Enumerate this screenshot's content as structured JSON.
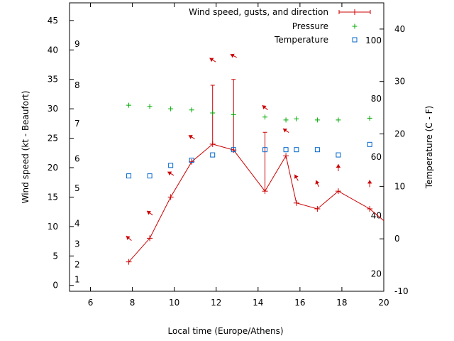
{
  "chart_data": {
    "type": "line",
    "xlabel": "Local time (Europe/Athens)",
    "ylabel": "Wind speed (kt - Beaufort)",
    "y2label": "Temperature (C - F)",
    "xlim": [
      5,
      20
    ],
    "ylim": [
      -1,
      48
    ],
    "y2lim": [
      -10,
      45
    ],
    "x_ticks": [
      6,
      8,
      10,
      12,
      14,
      16,
      18,
      20
    ],
    "y_ticks": [
      0,
      5,
      10,
      15,
      20,
      25,
      30,
      35,
      40,
      45
    ],
    "y2_ticks": [
      -10,
      0,
      10,
      20,
      30,
      40
    ],
    "beaufort_labels": [
      {
        "label": "1",
        "kt": 1
      },
      {
        "label": "2",
        "kt": 3.5
      },
      {
        "label": "3",
        "kt": 7
      },
      {
        "label": "4",
        "kt": 10.5
      },
      {
        "label": "5",
        "kt": 16.5
      },
      {
        "label": "6",
        "kt": 21.5
      },
      {
        "label": "7",
        "kt": 27.5
      },
      {
        "label": "8",
        "kt": 34
      },
      {
        "label": "9",
        "kt": 41
      }
    ],
    "fahrenheit_labels": [
      {
        "label": "20",
        "celsius": -6.7
      },
      {
        "label": "40",
        "celsius": 4.4
      },
      {
        "label": "60",
        "celsius": 15.6
      },
      {
        "label": "80",
        "celsius": 26.7
      },
      {
        "label": "100",
        "celsius": 37.8
      }
    ],
    "legend": {
      "placement": "top-right",
      "entries": [
        {
          "label": "Wind speed, gusts, and direction"
        },
        {
          "label": "Pressure"
        },
        {
          "label": "Temperature"
        }
      ]
    },
    "series": [
      {
        "name": "Wind speed, gusts, and direction",
        "color": "#cc0000",
        "x": [
          7.83,
          8.83,
          9.83,
          10.83,
          11.83,
          12.83,
          14.33,
          15.33,
          15.83,
          16.83,
          17.83,
          19.33,
          20.0
        ],
        "values": [
          4,
          8,
          15,
          21,
          24,
          23,
          16,
          22,
          14,
          13,
          16,
          13,
          11
        ],
        "gusts": [
          null,
          null,
          null,
          null,
          34,
          35,
          26,
          null,
          null,
          null,
          null,
          null,
          null
        ],
        "arrows": [
          {
            "x": 7.83,
            "kt": 8,
            "dx": 7,
            "dy": 6
          },
          {
            "x": 8.83,
            "kt": 12.3,
            "dx": 7,
            "dy": 5
          },
          {
            "x": 9.83,
            "kt": 19,
            "dx": 7,
            "dy": 4
          },
          {
            "x": 10.83,
            "kt": 25.2,
            "dx": 7,
            "dy": 4
          },
          {
            "x": 11.83,
            "kt": 38.3,
            "dx": 8,
            "dy": 5
          },
          {
            "x": 12.83,
            "kt": 39,
            "dx": 8,
            "dy": 4
          },
          {
            "x": 14.33,
            "kt": 30.2,
            "dx": 6,
            "dy": 5
          },
          {
            "x": 15.33,
            "kt": 26.3,
            "dx": 6,
            "dy": 4
          },
          {
            "x": 15.83,
            "kt": 18.3,
            "dx": 4,
            "dy": 7
          },
          {
            "x": 16.83,
            "kt": 17.3,
            "dx": 3,
            "dy": 7
          },
          {
            "x": 17.83,
            "kt": 20,
            "dx": 0,
            "dy": 9
          },
          {
            "x": 19.33,
            "kt": 17.3,
            "dx": 0,
            "dy": 9
          }
        ]
      },
      {
        "name": "Pressure",
        "color": "#00aa00",
        "x": [
          7.83,
          8.83,
          9.83,
          10.83,
          11.83,
          12.83,
          14.33,
          15.33,
          15.83,
          16.83,
          17.83,
          19.33
        ],
        "values": [
          30.6,
          30.4,
          30.0,
          29.8,
          29.3,
          29.0,
          28.6,
          28.1,
          28.3,
          28.1,
          28.1,
          28.4
        ]
      },
      {
        "name": "Temperature",
        "color": "#0066cc",
        "x": [
          7.83,
          8.83,
          9.83,
          10.83,
          11.83,
          12.83,
          14.33,
          15.33,
          15.83,
          16.83,
          17.83,
          19.33
        ],
        "values": [
          12,
          12,
          14,
          15,
          16,
          17,
          17,
          17,
          17,
          17,
          16,
          18
        ]
      }
    ]
  }
}
